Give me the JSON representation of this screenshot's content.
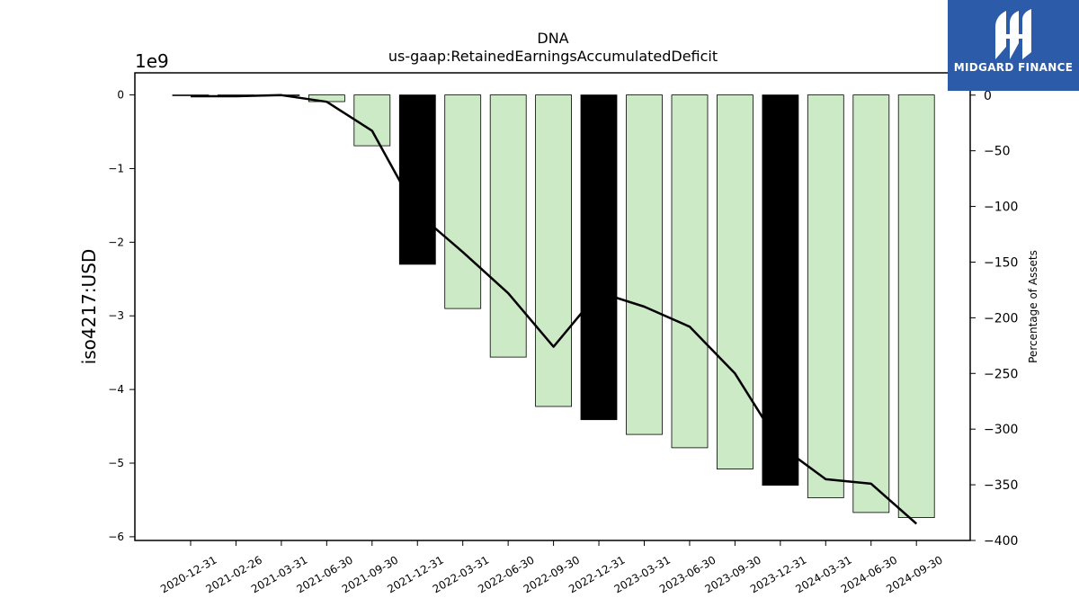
{
  "chart_data": {
    "type": "bar",
    "title": "DNA",
    "subtitle": "us-gaap:RetainedEarningsAccumulatedDeficit",
    "ylabel": "iso4217:USD",
    "y2label": "Percentage of Assets",
    "y_offset_label": "1e9",
    "categories": [
      "2020-12-31",
      "2021-02-26",
      "2021-03-31",
      "2021-06-30",
      "2021-09-30",
      "2021-12-31",
      "2022-03-31",
      "2022-06-30",
      "2022-09-30",
      "2022-12-31",
      "2023-03-31",
      "2023-06-30",
      "2023-09-30",
      "2023-12-31",
      "2024-03-31",
      "2024-06-30",
      "2024-09-30"
    ],
    "series": [
      {
        "type": "bar",
        "values": [
          -0.01,
          -0.01,
          0.0,
          -0.09,
          -0.69,
          -2.3,
          -2.9,
          -3.56,
          -4.23,
          -4.41,
          -4.61,
          -4.79,
          -5.08,
          -5.3,
          -5.47,
          -5.67,
          -5.74
        ],
        "highlight": [
          false,
          false,
          false,
          false,
          false,
          true,
          false,
          false,
          false,
          true,
          false,
          false,
          false,
          true,
          false,
          false,
          false
        ],
        "color": "#cdeac6",
        "highlight_color": "#000000"
      },
      {
        "type": "line",
        "axis": "right",
        "values": [
          -1,
          -1,
          0,
          -6,
          -32,
          -106,
          -141,
          -178,
          -226,
          -177,
          -190,
          -208,
          -250,
          -315,
          -345,
          -349,
          -385
        ],
        "color": "#000000"
      }
    ],
    "yticks": [
      0,
      -1,
      -2,
      -3,
      -4,
      -5,
      -6
    ],
    "ylim": [
      -6.05,
      0.3
    ],
    "y2ticks": [
      0,
      -50,
      -100,
      -150,
      -200,
      -250,
      -300,
      -350,
      -400
    ],
    "y2lim": [
      -400,
      20
    ],
    "grid": false
  },
  "logo": {
    "text": "MIDGARD FINANCE"
  }
}
